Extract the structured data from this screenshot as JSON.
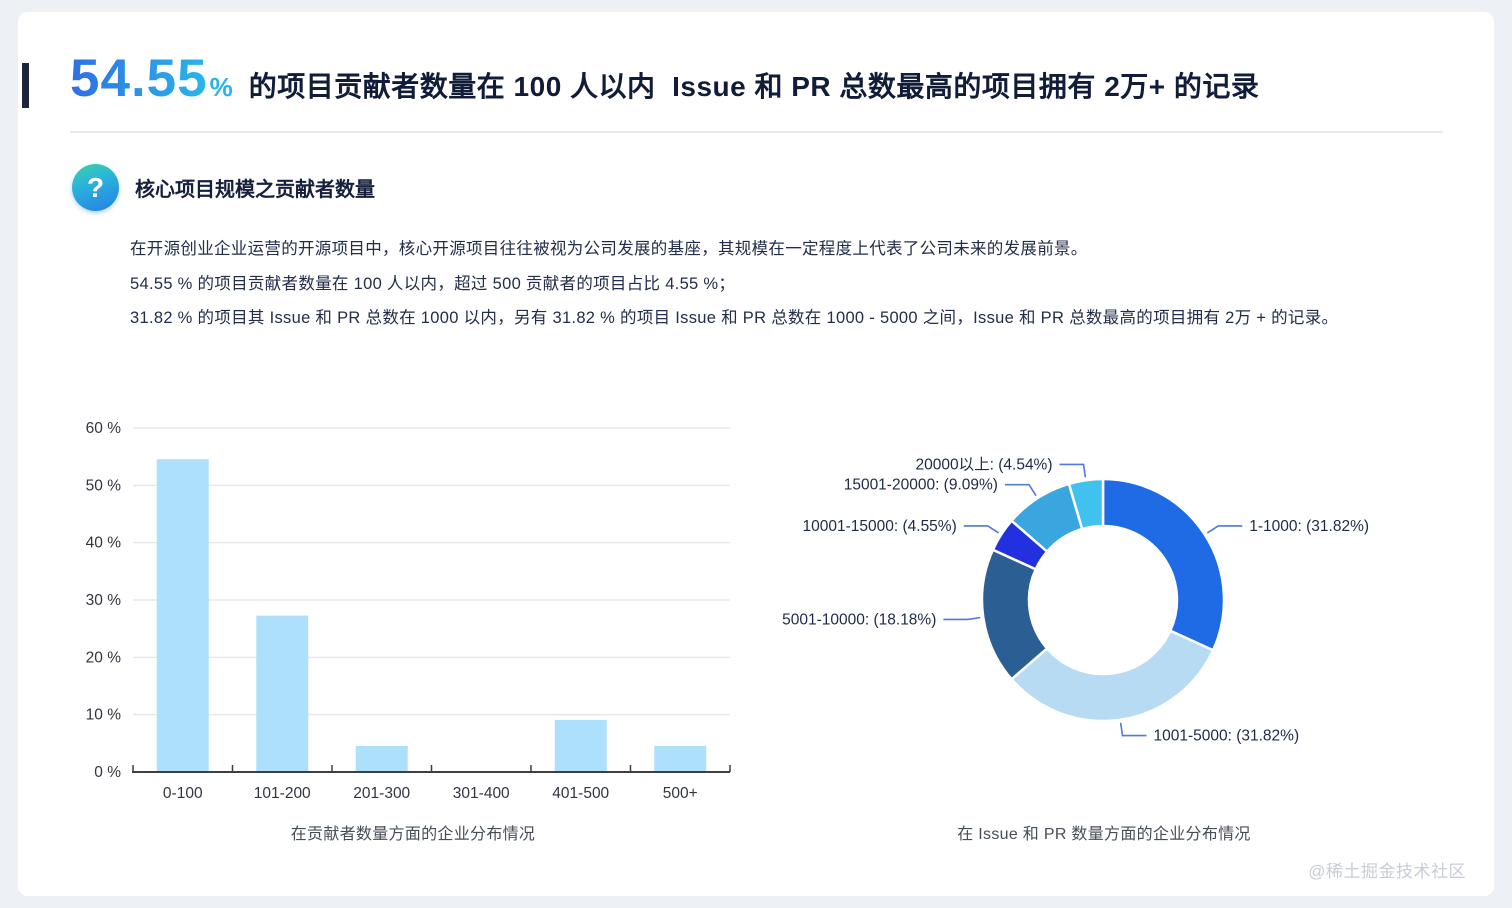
{
  "header": {
    "highlight_value": "54.55",
    "highlight_unit": "%",
    "title_rest": "的项目贡献者数量在 100 人以内  Issue 和 PR 总数最高的项目拥有 2万+ 的记录"
  },
  "section": {
    "icon": "question-mark",
    "icon_glyph": "?",
    "title": "核心项目规模之贡献者数量",
    "paragraphs": [
      "在开源创业企业运营的开源项目中，核心开源项目往往被视为公司发展的基座，其规模在一定程度上代表了公司未来的发展前景。",
      "54.55 % 的项目贡献者数量在 100 人以内，超过 500 贡献者的项目占比 4.55 %；",
      "31.82 % 的项目其 Issue 和 PR 总数在 1000 以内，另有 31.82 % 的项目 Issue 和 PR 总数在 1000 - 5000 之间，Issue 和 PR 总数最高的项目拥有 2万 + 的记录。"
    ]
  },
  "chart_data": [
    {
      "type": "bar",
      "title": "在贡献者数量方面的企业分布情况",
      "categories": [
        "0-100",
        "101-200",
        "201-300",
        "301-400",
        "401-500",
        "500+"
      ],
      "values": [
        54.55,
        27.27,
        4.55,
        0,
        9.09,
        4.55
      ],
      "xlabel": "",
      "ylabel": "",
      "ylim": [
        0,
        60
      ],
      "y_tick_labels": [
        "0 %",
        "10 %",
        "20 %",
        "30 %",
        "40 %",
        "50 %",
        "60 %"
      ],
      "grid": true,
      "bar_color": "#ADE0FA",
      "axis_color": "#3c3f46",
      "grid_color": "#e6e8ec",
      "tick_label_color": "#31353e"
    },
    {
      "type": "pie",
      "donut": true,
      "title": "在 Issue 和 PR 数量方面的企业分布情况",
      "start_angle_deg": 0,
      "clockwise": true,
      "legend_position": "callout-labels",
      "label_line_color": "#4e7ad8",
      "label_color": "#1e2a47",
      "slices": [
        {
          "label": "1-1000",
          "percent": 31.82,
          "display": "1-1000: (31.82%)",
          "color": "#1F6AE5"
        },
        {
          "label": "1001-5000",
          "percent": 31.82,
          "display": "1001-5000: (31.82%)",
          "color": "#B6DBF3"
        },
        {
          "label": "5001-10000",
          "percent": 18.18,
          "display": "5001-10000: (18.18%)",
          "color": "#2B5F94"
        },
        {
          "label": "10001-15000",
          "percent": 4.55,
          "display": "10001-15000: (4.55%)",
          "color": "#2230DF"
        },
        {
          "label": "15001-20000",
          "percent": 9.09,
          "display": "15001-20000: (9.09%)",
          "color": "#3AA6DF"
        },
        {
          "label": "20000以上",
          "percent": 4.54,
          "display": "20000以上: (4.54%)",
          "color": "#3FC2EE"
        }
      ]
    }
  ],
  "watermark": "@稀土掘金技术社区"
}
